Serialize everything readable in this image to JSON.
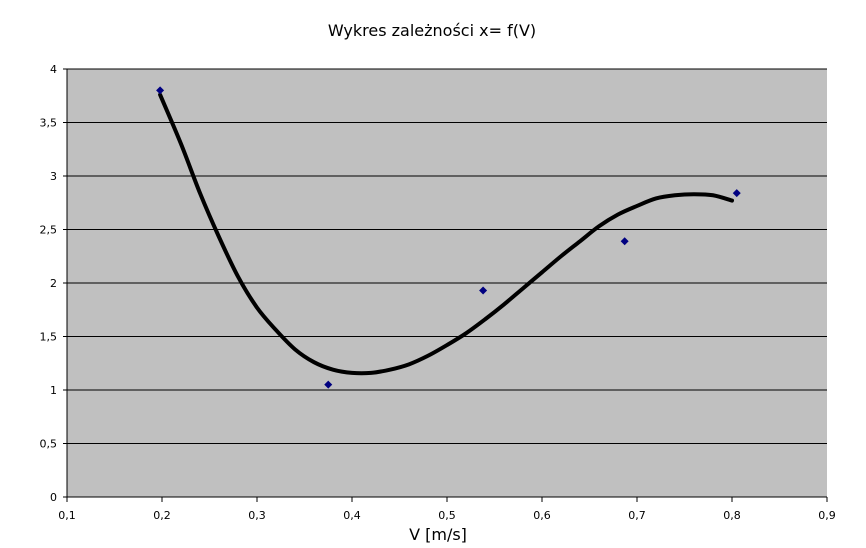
{
  "chart_data": {
    "type": "scatter",
    "title": "Wykres zależności x= f(V)",
    "xlabel": "V [m/s]",
    "ylabel": "",
    "xlim": [
      0.1,
      0.9
    ],
    "ylim": [
      0,
      4
    ],
    "x_ticks": [
      "0,1",
      "0,2",
      "0,3",
      "0,4",
      "0,5",
      "0,6",
      "0,7",
      "0,8",
      "0,9"
    ],
    "y_ticks": [
      "0",
      "0,5",
      "1",
      "1,5",
      "2",
      "2,5",
      "3",
      "3,5",
      "4"
    ],
    "grid": true,
    "legend": "none",
    "colors": {
      "plot_background": "#c0c0c0",
      "gridline": "#000000",
      "marker": "#000080",
      "trendline": "#000000"
    },
    "series": [
      {
        "marker": "diamond",
        "points": [
          {
            "x": 0.198,
            "y": 3.8
          },
          {
            "x": 0.375,
            "y": 1.05
          },
          {
            "x": 0.538,
            "y": 1.93
          },
          {
            "x": 0.687,
            "y": 2.39
          },
          {
            "x": 0.805,
            "y": 2.84
          }
        ]
      }
    ],
    "trendline": {
      "type": "polynomial",
      "points": [
        {
          "x": 0.198,
          "y": 3.76
        },
        {
          "x": 0.22,
          "y": 3.3
        },
        {
          "x": 0.24,
          "y": 2.84
        },
        {
          "x": 0.26,
          "y": 2.43
        },
        {
          "x": 0.28,
          "y": 2.06
        },
        {
          "x": 0.3,
          "y": 1.77
        },
        {
          "x": 0.32,
          "y": 1.56
        },
        {
          "x": 0.34,
          "y": 1.38
        },
        {
          "x": 0.36,
          "y": 1.26
        },
        {
          "x": 0.38,
          "y": 1.19
        },
        {
          "x": 0.4,
          "y": 1.16
        },
        {
          "x": 0.42,
          "y": 1.16
        },
        {
          "x": 0.44,
          "y": 1.19
        },
        {
          "x": 0.46,
          "y": 1.24
        },
        {
          "x": 0.48,
          "y": 1.32
        },
        {
          "x": 0.5,
          "y": 1.42
        },
        {
          "x": 0.52,
          "y": 1.53
        },
        {
          "x": 0.54,
          "y": 1.66
        },
        {
          "x": 0.56,
          "y": 1.8
        },
        {
          "x": 0.58,
          "y": 1.95
        },
        {
          "x": 0.6,
          "y": 2.1
        },
        {
          "x": 0.62,
          "y": 2.25
        },
        {
          "x": 0.64,
          "y": 2.39
        },
        {
          "x": 0.66,
          "y": 2.53
        },
        {
          "x": 0.68,
          "y": 2.64
        },
        {
          "x": 0.7,
          "y": 2.72
        },
        {
          "x": 0.72,
          "y": 2.79
        },
        {
          "x": 0.74,
          "y": 2.82
        },
        {
          "x": 0.76,
          "y": 2.83
        },
        {
          "x": 0.78,
          "y": 2.82
        },
        {
          "x": 0.8,
          "y": 2.77
        }
      ]
    }
  }
}
